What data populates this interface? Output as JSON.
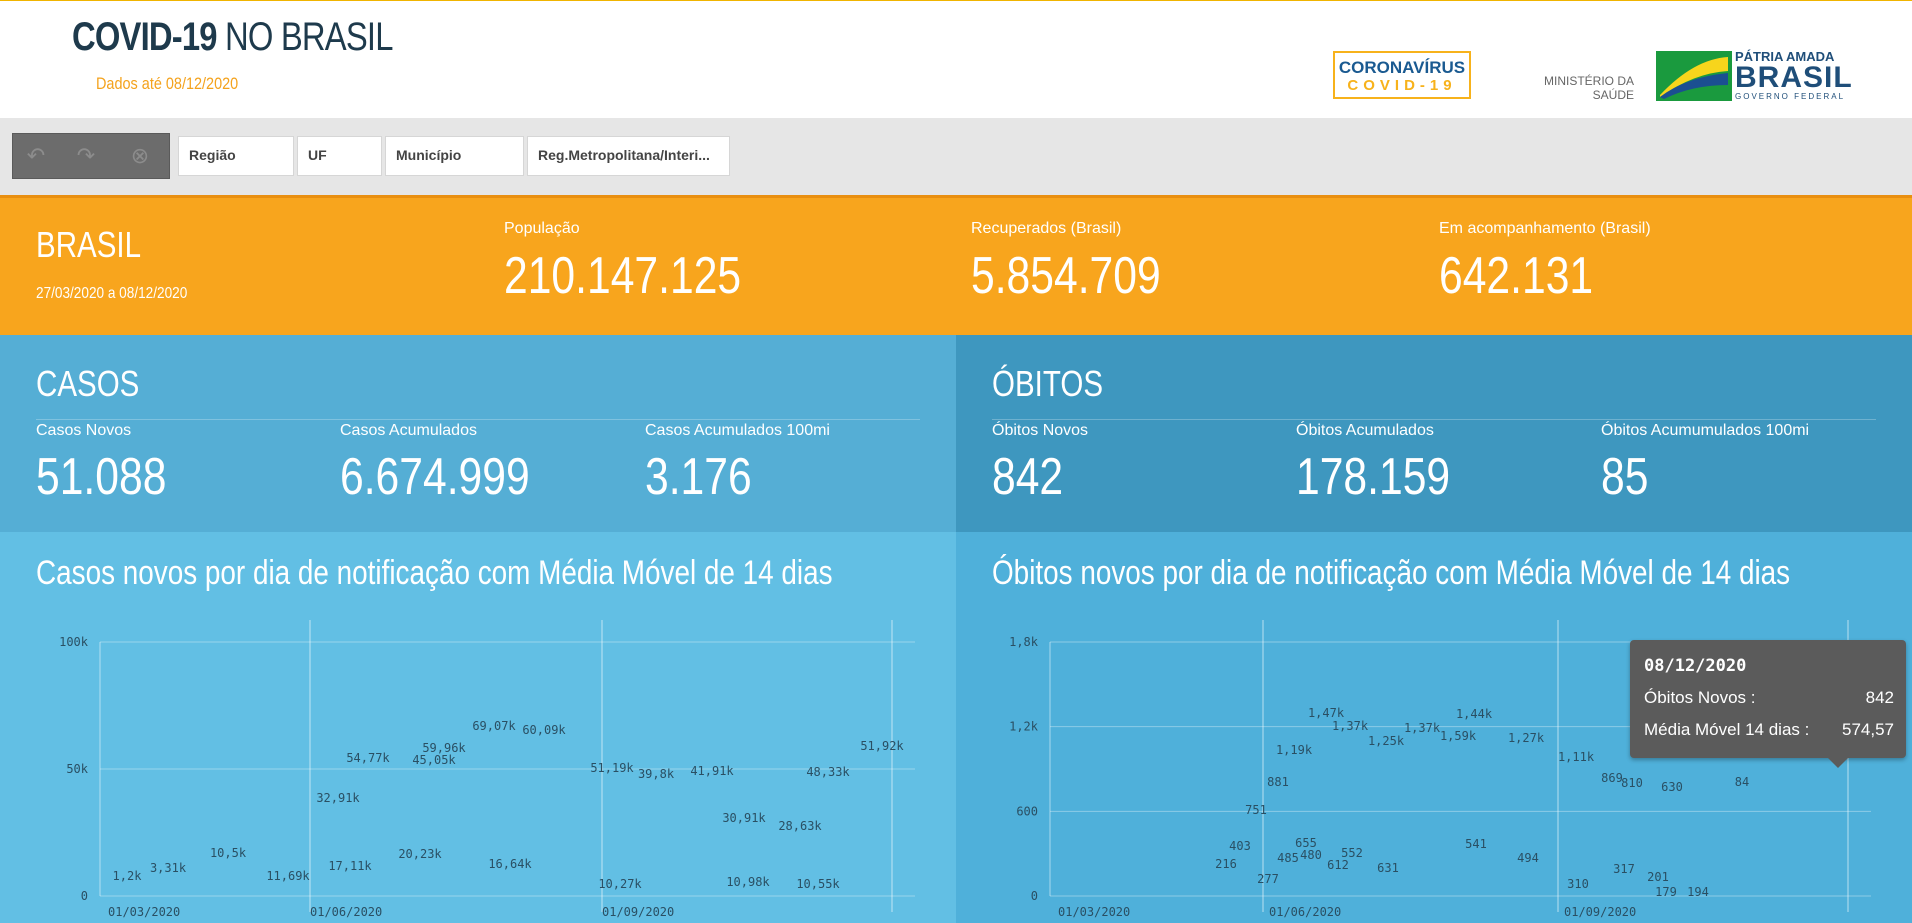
{
  "header": {
    "title_bold": "COVID-19",
    "title_rest": " NO BRASIL",
    "dados_ate": "Dados até 08/12/2020",
    "logo_covid_line1": "CORONAVÍRUS",
    "logo_covid_line2": "COVID-19",
    "ministerio_line1": "MINISTÉRIO DA",
    "ministerio_line2": "SAÚDE",
    "patria_line1": "PÁTRIA AMADA",
    "patria_line2": "BRASIL",
    "patria_line3": "GOVERNO FEDERAL"
  },
  "toolbar": {
    "filters": [
      "Região",
      "UF",
      "Município",
      "Reg.Metropolitana/Interi..."
    ]
  },
  "summary": {
    "region": "BRASIL",
    "period": "27/03/2020 a 08/12/2020",
    "populacao_label": "População",
    "populacao_value": "210.147.125",
    "recuperados_label": "Recuperados (Brasil)",
    "recuperados_value": "5.854.709",
    "acompanhamento_label": "Em acompanhamento (Brasil)",
    "acompanhamento_value": "642.131"
  },
  "casos": {
    "title": "CASOS",
    "novos_label": "Casos Novos",
    "novos_value": "51.088",
    "acum_label": "Casos Acumulados",
    "acum_value": "6.674.999",
    "acum100_label": "Casos Acumulados 100mi",
    "acum100_value": "3.176"
  },
  "obitos": {
    "title": "ÓBITOS",
    "novos_label": "Óbitos Novos",
    "novos_value": "842",
    "acum_label": "Óbitos Acumulados",
    "acum_value": "178.159",
    "acum100_label": "Óbitos Acumumulados 100mi",
    "acum100_value": "85"
  },
  "chart_data": [
    {
      "type": "line",
      "title": "Casos novos por dia de notificação com Média Móvel de 14 dias",
      "x_tick_labels": [
        "01/03/2020",
        "01/06/2020",
        "01/09/2020"
      ],
      "y_tick_labels": [
        "0",
        "50k",
        "100k"
      ],
      "ylim": [
        0,
        100000
      ],
      "series": [],
      "data_labels": [
        "1,2k",
        "3,31k",
        "10,5k",
        "11,69k",
        "32,91k",
        "17,11k",
        "54,77k",
        "20,23k",
        "45,05k",
        "59,96k",
        "69,07k",
        "16,64k",
        "60,09k",
        "51,19k",
        "10,27k",
        "39,8k",
        "41,91k",
        "30,91k",
        "10,98k",
        "28,63k",
        "10,55k",
        "48,33k",
        "51,92k"
      ]
    },
    {
      "type": "line",
      "title": "Óbitos novos por dia de notificação com Média Móvel de 14 dias",
      "x_tick_labels": [
        "01/03/2020",
        "01/06/2020",
        "01/09/2020"
      ],
      "y_tick_labels": [
        "0",
        "600",
        "1,2k",
        "1,8k"
      ],
      "ylim": [
        0,
        1800
      ],
      "series": [],
      "data_labels": [
        "216",
        "403",
        "751",
        "277",
        "881",
        "1,19k",
        "485",
        "655",
        "480",
        "1,47k",
        "612",
        "1,37k",
        "552",
        "1,25k",
        "631",
        "1,37k",
        "1,59k",
        "1,44k",
        "541",
        "1,27k",
        "494",
        "1,11k",
        "310",
        "869",
        "317",
        "810",
        "201",
        "630",
        "179",
        "194",
        "84"
      ]
    }
  ],
  "tooltip": {
    "date": "08/12/2020",
    "row1_label": "Óbitos Novos :",
    "row1_value": "842",
    "row2_label": "Média Móvel 14 dias :",
    "row2_value": "574,57"
  },
  "colors": {
    "orange": "#f8a51d",
    "casos_blue": "#55aed5",
    "obitos_blue": "#3e97bf"
  }
}
